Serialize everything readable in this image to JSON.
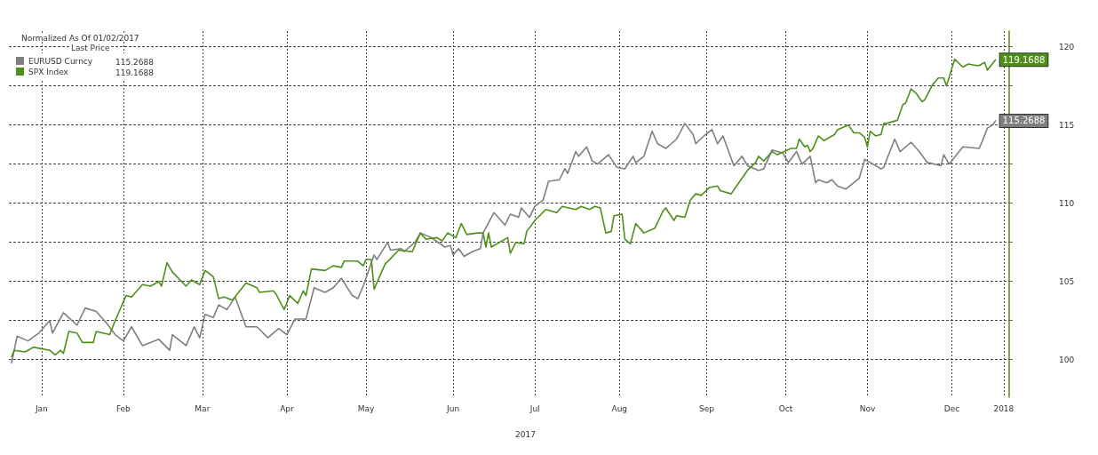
{
  "chart_data": {
    "type": "line",
    "legend_title": "Normalized As Of 01/02/2017",
    "annotations": [
      "Last Price",
      "2017"
    ],
    "legend": "top left",
    "grid": true,
    "marker": "none",
    "line_style": "solid",
    "xlim": [
      "2017-01-01",
      "2018-01-03"
    ],
    "xticks": [
      {
        "value": "2017-01-13",
        "label": "Jan"
      },
      {
        "value": "2017-02-12",
        "label": "Feb"
      },
      {
        "value": "2017-03-13",
        "label": "Mar"
      },
      {
        "value": "2017-04-13",
        "label": "Apr"
      },
      {
        "value": "2017-05-12",
        "label": "May"
      },
      {
        "value": "2017-06-13",
        "label": "Jun"
      },
      {
        "value": "2017-07-13",
        "label": "Jul"
      },
      {
        "value": "2017-08-13",
        "label": "Aug"
      },
      {
        "value": "2017-09-14",
        "label": "Sep"
      },
      {
        "value": "2017-10-13",
        "label": "Oct"
      },
      {
        "value": "2017-11-12",
        "label": "Nov"
      },
      {
        "value": "2017-12-13",
        "label": "Dec"
      },
      {
        "value": "2018-01-01",
        "label": "2018"
      }
    ],
    "ylim": [
      97.6,
      121
    ],
    "yticks": [
      100,
      {
        "value": 102.5,
        "label": null
      },
      105,
      {
        "value": 107.5,
        "label": null
      },
      110,
      {
        "value": 112.5,
        "label": null
      },
      115,
      {
        "value": 117.5,
        "label": null
      },
      120
    ],
    "series": [
      {
        "name": "EURUSD Curncy",
        "color": "#7f7f7f",
        "x": [
          "2017-01-02",
          "2017-01-04",
          "2017-01-08",
          "2017-01-12",
          "2017-01-16",
          "2017-01-17",
          "2017-01-21",
          "2017-01-26",
          "2017-01-29",
          "2017-02-02",
          "2017-02-06",
          "2017-02-09",
          "2017-02-12",
          "2017-02-15",
          "2017-02-19",
          "2017-02-25",
          "2017-03-01",
          "2017-03-02",
          "2017-03-07",
          "2017-03-10",
          "2017-03-12",
          "2017-03-14",
          "2017-03-17",
          "2017-03-19",
          "2017-03-22",
          "2017-03-25",
          "2017-03-29",
          "2017-04-02",
          "2017-04-06",
          "2017-04-10",
          "2017-04-13",
          "2017-04-16",
          "2017-04-20",
          "2017-04-23",
          "2017-04-27",
          "2017-04-30",
          "2017-05-03",
          "2017-05-07",
          "2017-05-09",
          "2017-05-11",
          "2017-05-15",
          "2017-05-16",
          "2017-05-20",
          "2017-05-21",
          "2017-05-25",
          "2017-05-26",
          "2017-05-30",
          "2017-06-01",
          "2017-06-05",
          "2017-06-10",
          "2017-06-12",
          "2017-06-13",
          "2017-06-15",
          "2017-06-17",
          "2017-06-20",
          "2017-06-23",
          "2017-06-24",
          "2017-06-28",
          "2017-07-02",
          "2017-07-04",
          "2017-07-07",
          "2017-07-08",
          "2017-07-11",
          "2017-07-13",
          "2017-07-16",
          "2017-07-18",
          "2017-07-22",
          "2017-07-24",
          "2017-07-25",
          "2017-07-28",
          "2017-07-29",
          "2017-08-01",
          "2017-08-03",
          "2017-08-05",
          "2017-08-09",
          "2017-08-12",
          "2017-08-15",
          "2017-08-18",
          "2017-08-19",
          "2017-08-22",
          "2017-08-25",
          "2017-08-27",
          "2017-08-30",
          "2017-09-03",
          "2017-09-06",
          "2017-09-09",
          "2017-09-10",
          "2017-09-13",
          "2017-09-16",
          "2017-09-18",
          "2017-09-20",
          "2017-09-24",
          "2017-09-27",
          "2017-09-29",
          "2017-10-03",
          "2017-10-05",
          "2017-10-08",
          "2017-10-12",
          "2017-10-14",
          "2017-10-17",
          "2017-10-19",
          "2017-10-22",
          "2017-10-24",
          "2017-10-25",
          "2017-10-28",
          "2017-10-30",
          "2017-11-01",
          "2017-11-04",
          "2017-11-09",
          "2017-11-11",
          "2017-11-13",
          "2017-11-17",
          "2017-11-18",
          "2017-11-22",
          "2017-11-24",
          "2017-11-28",
          "2017-12-01",
          "2017-12-04",
          "2017-12-09",
          "2017-12-10",
          "2017-12-12",
          "2017-12-17",
          "2017-12-23",
          "2017-12-24",
          "2017-12-26",
          "2017-12-28",
          "2017-12-29"
        ],
        "values": [
          99.8,
          101.5,
          101.2,
          101.7,
          102.5,
          101.7,
          103.0,
          102.2,
          103.3,
          103.1,
          102.3,
          101.6,
          101.2,
          102.1,
          100.9,
          101.3,
          100.6,
          101.6,
          100.9,
          102.1,
          101.4,
          102.9,
          102.7,
          103.5,
          103.2,
          104.0,
          102.1,
          102.1,
          101.4,
          102.0,
          101.6,
          102.6,
          102.6,
          104.6,
          104.3,
          104.6,
          105.2,
          104.1,
          103.9,
          104.7,
          106.7,
          106.4,
          107.5,
          107.0,
          107.1,
          106.9,
          107.5,
          108.1,
          107.8,
          107.2,
          107.3,
          106.7,
          107.1,
          106.6,
          106.9,
          107.1,
          108.1,
          109.4,
          108.6,
          109.3,
          109.1,
          109.7,
          109.1,
          109.8,
          110.2,
          111.4,
          111.5,
          112.2,
          111.9,
          113.3,
          113.0,
          113.6,
          112.7,
          112.5,
          113.1,
          112.3,
          112.2,
          113.0,
          112.6,
          113.0,
          114.6,
          113.8,
          113.5,
          114.1,
          115.1,
          114.4,
          113.8,
          114.3,
          114.7,
          113.8,
          114.3,
          112.4,
          113.0,
          112.4,
          112.1,
          112.2,
          113.4,
          113.2,
          112.6,
          113.3,
          112.5,
          113.0,
          111.3,
          111.5,
          111.3,
          111.5,
          111.1,
          110.9,
          111.6,
          112.8,
          112.6,
          112.2,
          112.3,
          114.1,
          113.3,
          113.9,
          113.3,
          112.6,
          112.4,
          113.1,
          112.5,
          113.6,
          113.5,
          113.9,
          114.8,
          115.0,
          115.2688
        ],
        "value_labels": [
          null,
          null,
          null,
          null,
          null,
          null,
          null,
          null,
          null,
          null,
          null,
          null,
          null,
          null,
          null,
          null,
          null,
          null,
          null,
          null,
          null,
          null,
          null,
          null,
          null,
          null,
          null,
          null,
          null,
          null,
          null,
          null,
          null,
          null,
          null,
          null,
          null,
          null,
          null,
          null,
          null,
          null,
          null,
          null,
          null,
          null,
          null,
          null,
          null,
          null,
          null,
          null,
          null,
          null,
          null,
          null,
          null,
          null,
          null,
          null,
          null,
          null,
          null,
          null,
          null,
          null,
          null,
          null,
          null,
          null,
          null,
          null,
          null,
          null,
          null,
          null,
          null,
          null,
          null,
          null,
          null,
          null,
          null,
          null,
          null,
          null,
          null,
          null,
          null,
          null,
          null,
          null,
          null,
          null,
          null,
          null,
          null,
          null,
          null,
          null,
          null,
          null,
          null,
          null,
          null,
          null,
          null,
          null,
          null,
          null,
          null,
          null,
          null,
          null,
          null,
          null,
          null,
          null,
          null,
          null,
          null,
          null,
          null,
          null,
          null,
          null,
          "115.2688"
        ]
      },
      {
        "name": "SPX Index",
        "color": "#4e8f1a",
        "x": [
          "2017-01-02",
          "2017-01-03",
          "2017-01-07",
          "2017-01-10",
          "2017-01-16",
          "2017-01-18",
          "2017-01-20",
          "2017-01-21",
          "2017-01-23",
          "2017-01-26",
          "2017-01-28",
          "2017-02-01",
          "2017-02-02",
          "2017-02-07",
          "2017-02-09",
          "2017-02-13",
          "2017-02-15",
          "2017-02-19",
          "2017-02-22",
          "2017-02-25",
          "2017-02-26",
          "2017-02-28",
          "2017-03-02",
          "2017-03-07",
          "2017-03-09",
          "2017-03-12",
          "2017-03-14",
          "2017-03-17",
          "2017-03-19",
          "2017-03-21",
          "2017-03-24",
          "2017-03-29",
          "2017-04-02",
          "2017-04-03",
          "2017-04-08",
          "2017-04-09",
          "2017-04-12",
          "2017-04-14",
          "2017-04-17",
          "2017-04-19",
          "2017-04-20",
          "2017-04-22",
          "2017-04-27",
          "2017-04-30",
          "2017-05-03",
          "2017-05-04",
          "2017-05-09",
          "2017-05-11",
          "2017-05-12",
          "2017-05-14",
          "2017-05-15",
          "2017-05-19",
          "2017-05-24",
          "2017-05-29",
          "2017-06-01",
          "2017-06-03",
          "2017-06-07",
          "2017-06-09",
          "2017-06-11",
          "2017-06-14",
          "2017-06-16",
          "2017-06-18",
          "2017-06-22",
          "2017-06-24",
          "2017-06-25",
          "2017-06-26",
          "2017-06-27",
          "2017-07-03",
          "2017-07-04",
          "2017-07-06",
          "2017-07-09",
          "2017-07-10",
          "2017-07-13",
          "2017-07-17",
          "2017-07-21",
          "2017-07-23",
          "2017-07-28",
          "2017-07-30",
          "2017-08-02",
          "2017-08-04",
          "2017-08-06",
          "2017-08-08",
          "2017-08-10",
          "2017-08-11",
          "2017-08-14",
          "2017-08-15",
          "2017-08-17",
          "2017-08-19",
          "2017-08-22",
          "2017-08-26",
          "2017-08-29",
          "2017-08-30",
          "2017-09-02",
          "2017-09-03",
          "2017-09-06",
          "2017-09-08",
          "2017-09-10",
          "2017-09-12",
          "2017-09-15",
          "2017-09-18",
          "2017-09-19",
          "2017-09-23",
          "2017-09-25",
          "2017-09-29",
          "2017-10-02",
          "2017-10-03",
          "2017-10-05",
          "2017-10-08",
          "2017-10-10",
          "2017-10-15",
          "2017-10-17",
          "2017-10-18",
          "2017-10-20",
          "2017-10-21",
          "2017-10-22",
          "2017-10-23",
          "2017-10-25",
          "2017-10-27",
          "2017-10-31",
          "2017-11-01",
          "2017-11-05",
          "2017-11-07",
          "2017-11-09",
          "2017-11-11",
          "2017-11-12",
          "2017-11-13",
          "2017-11-15",
          "2017-11-17",
          "2017-11-18",
          "2017-11-19",
          "2017-11-23",
          "2017-11-25",
          "2017-11-26",
          "2017-11-28",
          "2017-11-30",
          "2017-12-02",
          "2017-12-03",
          "2017-12-06",
          "2017-12-08",
          "2017-12-10",
          "2017-12-11",
          "2017-12-14",
          "2017-12-17",
          "2017-12-19",
          "2017-12-22",
          "2017-12-23",
          "2017-12-25",
          "2017-12-26",
          "2017-12-29"
        ],
        "values": [
          100.2,
          100.6,
          100.5,
          100.8,
          100.6,
          100.3,
          100.6,
          100.4,
          101.8,
          101.7,
          101.1,
          101.1,
          101.8,
          101.6,
          102.5,
          104.1,
          104.0,
          104.8,
          104.7,
          105.0,
          104.7,
          106.2,
          105.6,
          104.7,
          105.1,
          104.8,
          105.7,
          105.3,
          103.9,
          104.0,
          103.8,
          104.9,
          104.6,
          104.3,
          104.4,
          104.2,
          103.2,
          104.1,
          103.6,
          104.4,
          104.1,
          105.8,
          105.7,
          106.0,
          105.9,
          106.3,
          106.3,
          106.0,
          106.4,
          106.4,
          104.5,
          106.1,
          107.0,
          106.9,
          108.1,
          107.7,
          107.8,
          107.6,
          108.1,
          107.8,
          108.7,
          108.0,
          108.1,
          108.1,
          107.2,
          108.1,
          107.2,
          107.8,
          106.8,
          107.5,
          107.4,
          108.2,
          108.9,
          109.6,
          109.4,
          109.8,
          109.6,
          109.8,
          109.6,
          109.8,
          109.7,
          108.1,
          108.2,
          109.2,
          109.3,
          107.7,
          107.4,
          108.7,
          108.1,
          108.4,
          109.5,
          109.7,
          108.9,
          109.2,
          109.1,
          110.2,
          110.6,
          110.5,
          111.0,
          111.1,
          110.8,
          110.6,
          111.1,
          112.1,
          112.6,
          113.0,
          112.7,
          113.3,
          113.1,
          113.5,
          113.5,
          114.1,
          113.6,
          113.7,
          113.3,
          113.5,
          114.3,
          114.0,
          114.4,
          114.7,
          115.0,
          114.5,
          114.5,
          114.2,
          113.6,
          114.6,
          114.3,
          114.4,
          115.1,
          115.1,
          115.3,
          116.3,
          116.4,
          117.3,
          117.0,
          116.5,
          116.6,
          117.6,
          118.0,
          118.0,
          117.5,
          119.2,
          118.7,
          118.9,
          118.8,
          118.8,
          119.0,
          118.5,
          119.1688
        ],
        "value_labels": [
          null,
          null,
          null,
          null,
          null,
          null,
          null,
          null,
          null,
          null,
          null,
          null,
          null,
          null,
          null,
          null,
          null,
          null,
          null,
          null,
          null,
          null,
          null,
          null,
          null,
          null,
          null,
          null,
          null,
          null,
          null,
          null,
          null,
          null,
          null,
          null,
          null,
          null,
          null,
          null,
          null,
          null,
          null,
          null,
          null,
          null,
          null,
          null,
          null,
          null,
          null,
          null,
          null,
          null,
          null,
          null,
          null,
          null,
          null,
          null,
          null,
          null,
          null,
          null,
          null,
          null,
          null,
          null,
          null,
          null,
          null,
          null,
          null,
          null,
          null,
          null,
          null,
          null,
          null,
          null,
          null,
          null,
          null,
          null,
          null,
          null,
          null,
          null,
          null,
          null,
          null,
          null,
          null,
          null,
          null,
          null,
          null,
          null,
          null,
          null,
          null,
          null,
          null,
          null,
          null,
          null,
          null,
          null,
          null,
          null,
          null,
          null,
          null,
          null,
          null,
          null,
          null,
          null,
          null,
          null,
          null,
          null,
          null,
          null,
          null,
          null,
          null,
          null,
          null,
          null,
          null,
          null,
          null,
          null,
          null,
          null,
          null,
          null,
          null,
          null,
          null,
          null,
          null,
          null,
          null,
          null,
          null,
          null,
          "119.1688"
        ]
      }
    ]
  }
}
